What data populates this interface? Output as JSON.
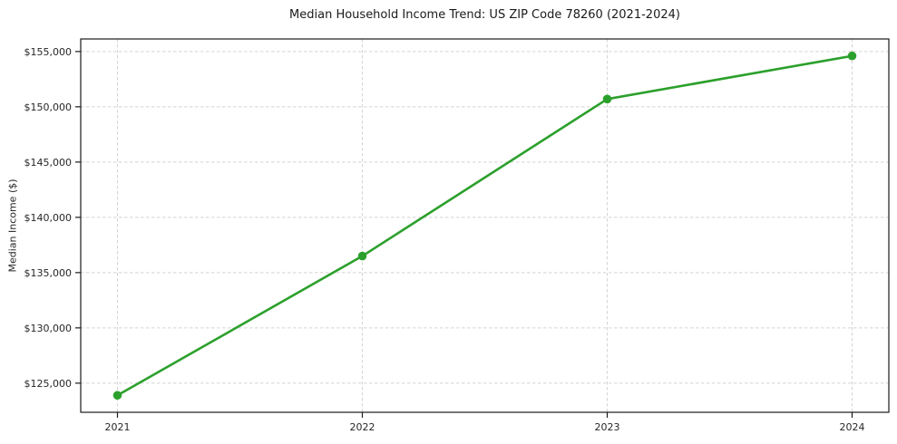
{
  "chart": {
    "title": "Median Household Income Trend: US ZIP Code 78260 (2021-2024)",
    "ylabel": "Median Income ($)"
  },
  "chart_data": {
    "type": "line",
    "title": "Median Household Income Trend: US ZIP Code 78260 (2021-2024)",
    "xlabel": "",
    "ylabel": "Median Income ($)",
    "x": [
      2021,
      2022,
      2023,
      2024
    ],
    "categories": [
      "2021",
      "2022",
      "2023",
      "2024"
    ],
    "series": [
      {
        "name": "Median Household Income",
        "values": [
          123900,
          136500,
          150700,
          154600
        ]
      }
    ],
    "values": [
      123900,
      136500,
      150700,
      154600
    ],
    "xlim": [
      2020.85,
      2024.15
    ],
    "ylim": [
      122365,
      156135
    ],
    "yticks": {
      "values": [
        125000,
        130000,
        135000,
        140000,
        145000,
        150000,
        155000
      ],
      "labels": [
        "$125,000",
        "$130,000",
        "$135,000",
        "$140,000",
        "$145,000",
        "$150,000",
        "$155,000"
      ]
    },
    "grid": true,
    "grid_style": "dashed",
    "legend": "none",
    "line_color": "#2ca02c",
    "marker": "circle",
    "marker_color": "#2ca02c",
    "background_color": "#ffffff",
    "grid_color": "#d4d4d4",
    "frame_color": "#1a1a1a",
    "tick_color": "#1a1a1a",
    "tick_label_color": "#262626",
    "title_color": "#1a1a1a"
  }
}
